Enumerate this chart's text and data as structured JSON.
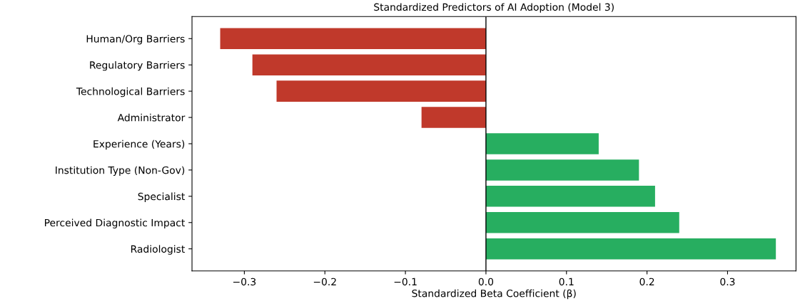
{
  "chart_data": {
    "type": "bar",
    "orientation": "horizontal",
    "title": "Standardized Predictors of AI Adoption (Model 3)",
    "xlabel": "Standardized Beta Coefficient (β)",
    "categories": [
      "Human/Org Barriers",
      "Regulatory Barriers",
      "Technological Barriers",
      "Administrator",
      "Experience (Years)",
      "Institution Type (Non-Gov)",
      "Specialist",
      "Perceived Diagnostic Impact",
      "Radiologist"
    ],
    "values": [
      -0.33,
      -0.29,
      -0.26,
      -0.08,
      0.14,
      0.19,
      0.21,
      0.24,
      0.36
    ],
    "colors": [
      "#c0392b",
      "#c0392b",
      "#c0392b",
      "#c0392b",
      "#27ae60",
      "#27ae60",
      "#27ae60",
      "#27ae60",
      "#27ae60"
    ],
    "xlim": [
      -0.365,
      0.385
    ],
    "xticks": [
      {
        "value": -0.3,
        "label": "−0.3"
      },
      {
        "value": -0.2,
        "label": "−0.2"
      },
      {
        "value": -0.1,
        "label": "−0.1"
      },
      {
        "value": 0,
        "label": "0.0"
      },
      {
        "value": 0.1,
        "label": "0.1"
      },
      {
        "value": 0.2,
        "label": "0.2"
      },
      {
        "value": 0.3,
        "label": "0.3"
      }
    ],
    "ref_lines": [
      {
        "axis": "x",
        "value": 0,
        "color": "#000000"
      }
    ],
    "grid": false,
    "legend": false
  }
}
